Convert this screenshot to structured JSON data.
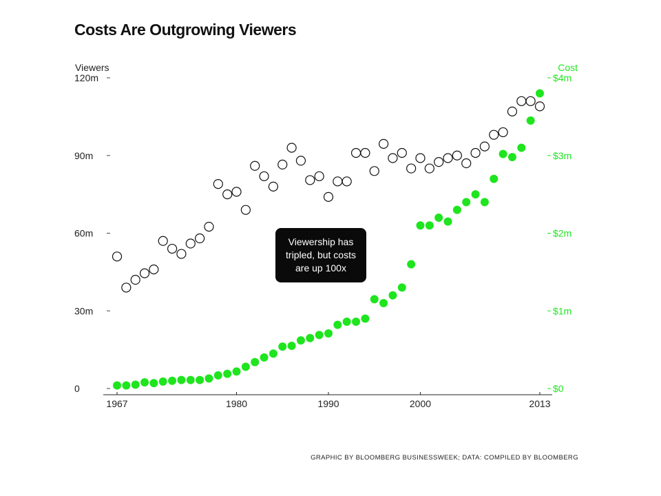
{
  "chart_data": {
    "type": "scatter",
    "title": "Costs Are Outgrowing Viewers",
    "callout": "Viewership has tripled, but costs are up 100x",
    "credit": "GRAPHIC BY BLOOMBERG BUSINESSWEEK; DATA: COMPILED BY BLOOMBERG",
    "x_ticks": [
      "1967",
      "1980",
      "1990",
      "2000",
      "2013"
    ],
    "xlim": [
      1967,
      2013
    ],
    "left_axis": {
      "label": "Viewers",
      "ylim": [
        0,
        120
      ],
      "tick_labels": [
        "0",
        "30m",
        "60m",
        "90m",
        "120m"
      ],
      "tick_values": [
        0,
        30,
        60,
        90,
        120
      ]
    },
    "right_axis": {
      "label": "Cost",
      "ylim": [
        0,
        4
      ],
      "tick_labels": [
        "$0",
        "$1m",
        "$2m",
        "$3m",
        "$4m"
      ],
      "tick_values": [
        0,
        1,
        2,
        3,
        4
      ]
    },
    "colors": {
      "viewers": "#111111",
      "cost": "#1ee51e"
    },
    "series": [
      {
        "name": "Viewers",
        "axis": "left",
        "marker": "open-circle",
        "x": [
          1967,
          1968,
          1969,
          1970,
          1971,
          1972,
          1973,
          1974,
          1975,
          1976,
          1977,
          1978,
          1979,
          1980,
          1981,
          1982,
          1983,
          1984,
          1985,
          1986,
          1987,
          1988,
          1989,
          1990,
          1991,
          1992,
          1993,
          1994,
          1995,
          1996,
          1997,
          1998,
          1999,
          2000,
          2001,
          2002,
          2003,
          2004,
          2005,
          2006,
          2007,
          2008,
          2009,
          2010,
          2011,
          2012,
          2013
        ],
        "values": [
          51,
          39,
          42,
          44.5,
          46,
          57,
          54,
          52,
          56,
          58,
          62.5,
          79,
          75,
          76,
          69,
          86,
          82,
          78,
          86.5,
          93,
          88,
          80.5,
          82,
          74,
          80,
          80,
          91,
          91,
          84,
          94.5,
          89,
          91,
          85,
          89,
          85,
          87.5,
          89,
          90,
          87,
          91,
          93.5,
          98,
          99,
          107,
          111,
          111,
          109
        ]
      },
      {
        "name": "Cost",
        "axis": "right",
        "marker": "filled-circle",
        "x": [
          1967,
          1968,
          1969,
          1970,
          1971,
          1972,
          1973,
          1974,
          1975,
          1976,
          1977,
          1978,
          1979,
          1980,
          1981,
          1982,
          1983,
          1984,
          1985,
          1986,
          1987,
          1988,
          1989,
          1990,
          1991,
          1992,
          1993,
          1994,
          1995,
          1996,
          1997,
          1998,
          1999,
          2000,
          2001,
          2002,
          2003,
          2004,
          2005,
          2006,
          2007,
          2008,
          2009,
          2010,
          2011,
          2012,
          2013
        ],
        "values": [
          0.04,
          0.04,
          0.05,
          0.08,
          0.07,
          0.09,
          0.1,
          0.11,
          0.11,
          0.11,
          0.13,
          0.17,
          0.19,
          0.22,
          0.28,
          0.34,
          0.4,
          0.45,
          0.54,
          0.55,
          0.62,
          0.65,
          0.69,
          0.71,
          0.82,
          0.86,
          0.86,
          0.9,
          1.15,
          1.1,
          1.2,
          1.3,
          1.6,
          2.1,
          2.1,
          2.2,
          2.15,
          2.3,
          2.4,
          2.5,
          2.4,
          2.7,
          3.02,
          2.98,
          3.1,
          3.45,
          3.8
        ]
      }
    ]
  }
}
